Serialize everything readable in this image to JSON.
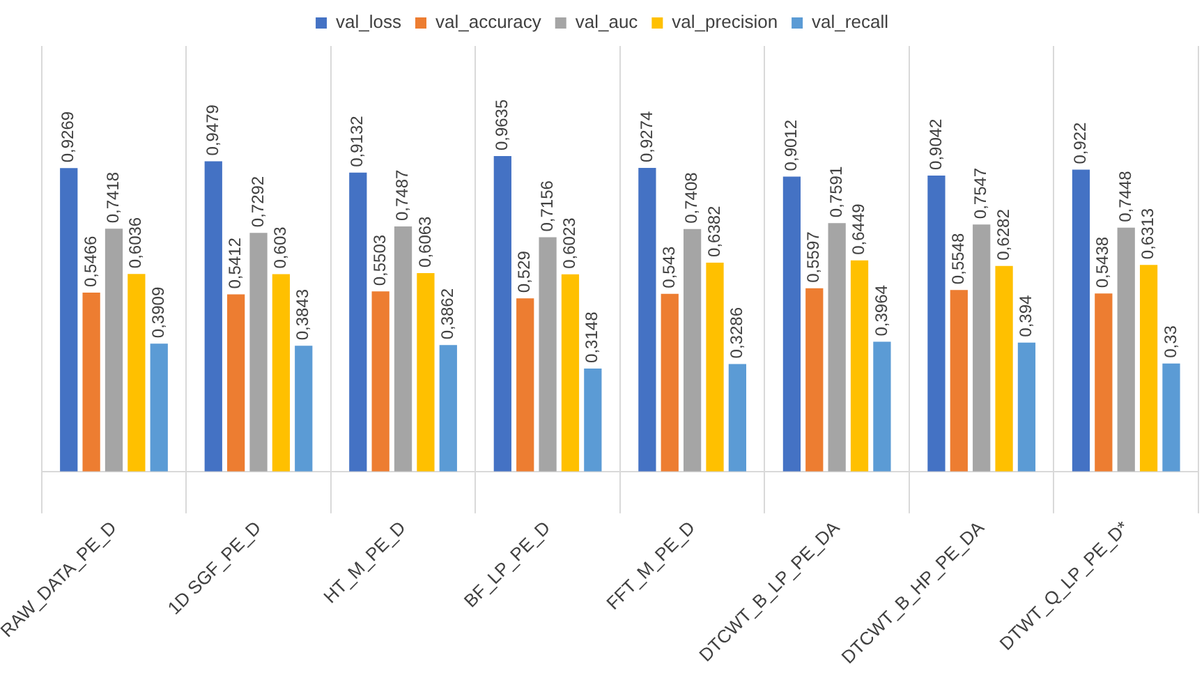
{
  "chart_data": {
    "type": "bar",
    "categories": [
      "RAW_DATA_PE_D",
      "1D SGF_PE_D",
      "HT_M_PE_D",
      "BF_LP_PE_D",
      "FFT_M_PE_D",
      "DTCWT_B_LP_PE_DA",
      "DTCWT_B_HP_PE_DA",
      "DTWT_Q_LP_PE_D*"
    ],
    "series": [
      {
        "name": "val_loss",
        "color": "#4472c4",
        "values": [
          0.9269,
          0.9479,
          0.9132,
          0.9635,
          0.9274,
          0.9012,
          0.9042,
          0.922
        ],
        "value_labels": [
          "0,9269",
          "0,9479",
          "0,9132",
          "0,9635",
          "0,9274",
          "0,9012",
          "0,9042",
          "0,922"
        ]
      },
      {
        "name": "val_accuracy",
        "color": "#ed7d31",
        "values": [
          0.5466,
          0.5412,
          0.5503,
          0.529,
          0.543,
          0.5597,
          0.5548,
          0.5438
        ],
        "value_labels": [
          "0,5466",
          "0,5412",
          "0,5503",
          "0,529",
          "0,543",
          "0,5597",
          "0,5548",
          "0,5438"
        ]
      },
      {
        "name": "val_auc",
        "color": "#a5a5a5",
        "values": [
          0.7418,
          0.7292,
          0.7487,
          0.7156,
          0.7408,
          0.7591,
          0.7547,
          0.7448
        ],
        "value_labels": [
          "0,7418",
          "0,7292",
          "0,7487",
          "0,7156",
          "0,7408",
          "0,7591",
          "0,7547",
          "0,7448"
        ]
      },
      {
        "name": "val_precision",
        "color": "#ffc000",
        "values": [
          0.6036,
          0.603,
          0.6063,
          0.6023,
          0.6382,
          0.6449,
          0.6282,
          0.6313
        ],
        "value_labels": [
          "0,6036",
          "0,603",
          "0,6063",
          "0,6023",
          "0,6382",
          "0,6449",
          "0,6282",
          "0,6313"
        ]
      },
      {
        "name": "val_recall",
        "color": "#5b9bd5",
        "values": [
          0.3909,
          0.3843,
          0.3862,
          0.3148,
          0.3286,
          0.3964,
          0.394,
          0.33
        ],
        "value_labels": [
          "0,3909",
          "0,3843",
          "0,3862",
          "0,3148",
          "0,3286",
          "0,3964",
          "0,394",
          "0,33"
        ]
      }
    ],
    "ylim": [
      0,
      1.3
    ],
    "tick_labels": "x",
    "grid": "x",
    "legend": "top"
  }
}
